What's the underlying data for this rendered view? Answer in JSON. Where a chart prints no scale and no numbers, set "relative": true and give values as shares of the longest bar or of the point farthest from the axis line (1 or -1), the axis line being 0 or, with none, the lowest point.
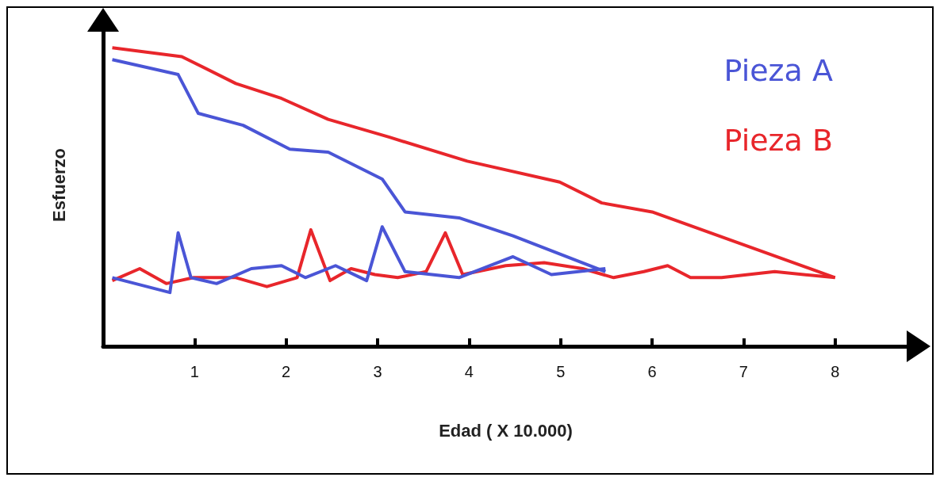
{
  "chart_data": {
    "type": "line",
    "relative": true,
    "xlabel": "Edad ( X 10.000)",
    "ylabel": "Esfuerzo",
    "xlim": [
      0,
      8.8
    ],
    "xticks": [
      1,
      2,
      3,
      4,
      5,
      6,
      7,
      8
    ],
    "grid": false,
    "legend": "top right",
    "marker": "none",
    "line_style": "solid",
    "series": [
      {
        "name": "Pieza A",
        "color": "#4a55d6",
        "x": [
          0.1,
          0.82,
          1.04,
          1.53,
          2.04,
          2.46,
          3.05,
          3.3,
          3.89,
          4.48,
          5.49
        ],
        "values": [
          0.96,
          0.91,
          0.78,
          0.74,
          0.66,
          0.65,
          0.56,
          0.45,
          0.43,
          0.37,
          0.25
        ]
      },
      {
        "name": "Pieza B",
        "color": "#e8262b",
        "x": [
          0.1,
          0.86,
          1.45,
          1.95,
          2.46,
          3.13,
          3.98,
          4.99,
          5.45,
          6.0,
          8.0
        ],
        "values": [
          1.0,
          0.97,
          0.88,
          0.83,
          0.76,
          0.7,
          0.62,
          0.55,
          0.48,
          0.45,
          0.23
        ]
      },
      {
        "color": "#e8262b",
        "x": [
          0.1,
          0.4,
          0.69,
          0.99,
          1.45,
          1.79,
          2.12,
          2.27,
          2.48,
          2.71,
          2.97,
          3.22,
          3.53,
          3.74,
          3.93,
          4.4,
          4.82,
          5.24,
          5.58,
          5.91,
          6.17,
          6.42,
          6.76,
          7.34,
          8.0
        ],
        "values": [
          0.22,
          0.26,
          0.21,
          0.23,
          0.23,
          0.2,
          0.23,
          0.39,
          0.22,
          0.26,
          0.24,
          0.23,
          0.25,
          0.38,
          0.24,
          0.27,
          0.28,
          0.26,
          0.23,
          0.25,
          0.27,
          0.23,
          0.23,
          0.25,
          0.23
        ]
      },
      {
        "color": "#4a55d6",
        "x": [
          0.1,
          0.73,
          0.82,
          0.96,
          1.24,
          1.62,
          1.95,
          2.21,
          2.54,
          2.88,
          3.05,
          3.3,
          3.89,
          4.48,
          4.9,
          5.49
        ],
        "values": [
          0.23,
          0.18,
          0.38,
          0.23,
          0.21,
          0.26,
          0.27,
          0.23,
          0.27,
          0.22,
          0.4,
          0.25,
          0.23,
          0.3,
          0.24,
          0.26
        ]
      }
    ]
  }
}
